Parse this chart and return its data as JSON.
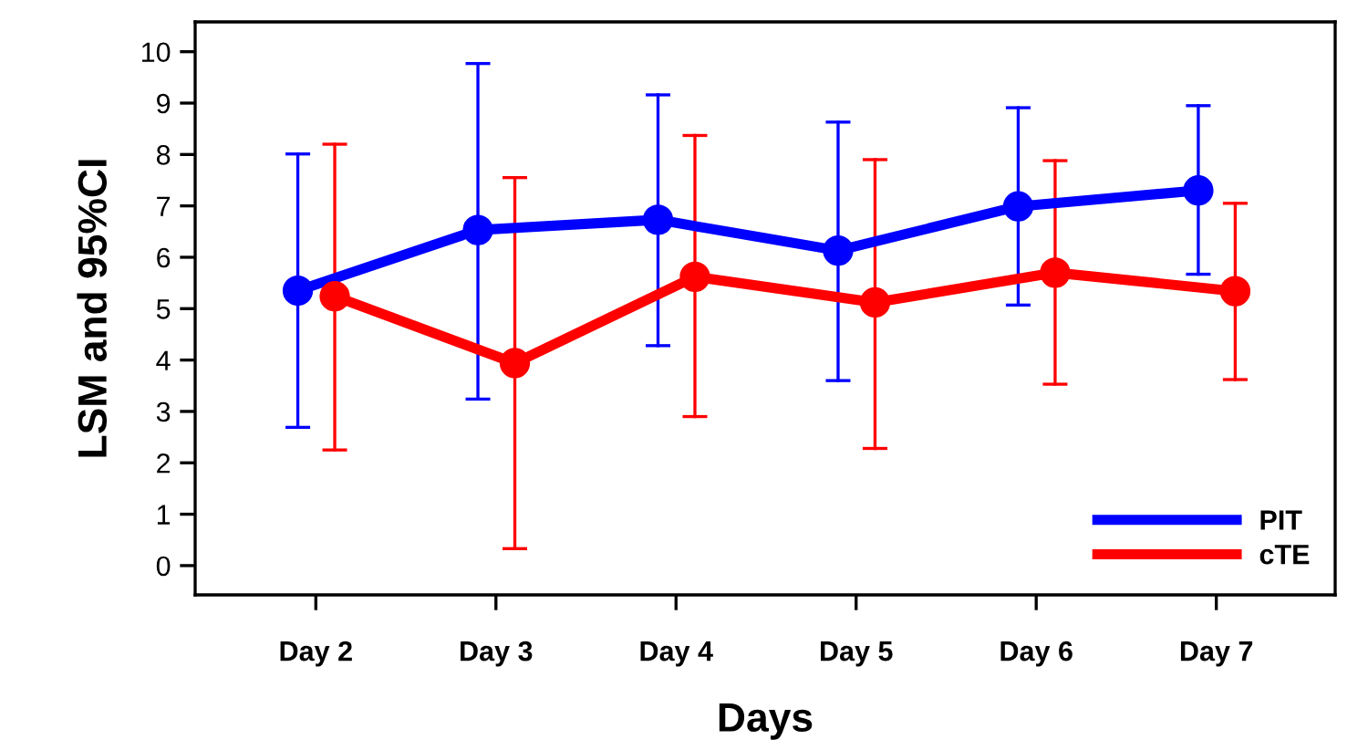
{
  "chart_data": {
    "type": "line",
    "xlabel": "Days",
    "ylabel": "LSM and 95%CI",
    "categories": [
      "Day 2",
      "Day 3",
      "Day 4",
      "Day 5",
      "Day 6",
      "Day 7"
    ],
    "series": [
      {
        "name": "PIT",
        "color": "#0000ff",
        "values": [
          5.35,
          6.53,
          6.73,
          6.13,
          6.99,
          7.3
        ],
        "errors": [
          [
            2.69,
            8.01
          ],
          [
            3.24,
            9.77
          ],
          [
            4.28,
            9.16
          ],
          [
            3.6,
            8.63
          ],
          [
            5.07,
            8.91
          ],
          [
            5.67,
            8.95
          ]
        ]
      },
      {
        "name": "cTE",
        "color": "#ff0000",
        "values": [
          5.24,
          3.94,
          5.62,
          5.12,
          5.7,
          5.34
        ],
        "errors": [
          [
            2.25,
            8.2
          ],
          [
            0.33,
            7.55
          ],
          [
            2.9,
            8.37
          ],
          [
            2.28,
            7.9
          ],
          [
            3.53,
            7.88
          ],
          [
            3.62,
            7.05
          ]
        ]
      }
    ],
    "ylim": [
      -0.57,
      10.58
    ],
    "yticks": [
      0,
      1,
      2,
      3,
      4,
      5,
      6,
      7,
      8,
      9,
      10
    ],
    "marker": "circle",
    "line_style": "solid",
    "legend": "bottom right",
    "grid": false
  }
}
